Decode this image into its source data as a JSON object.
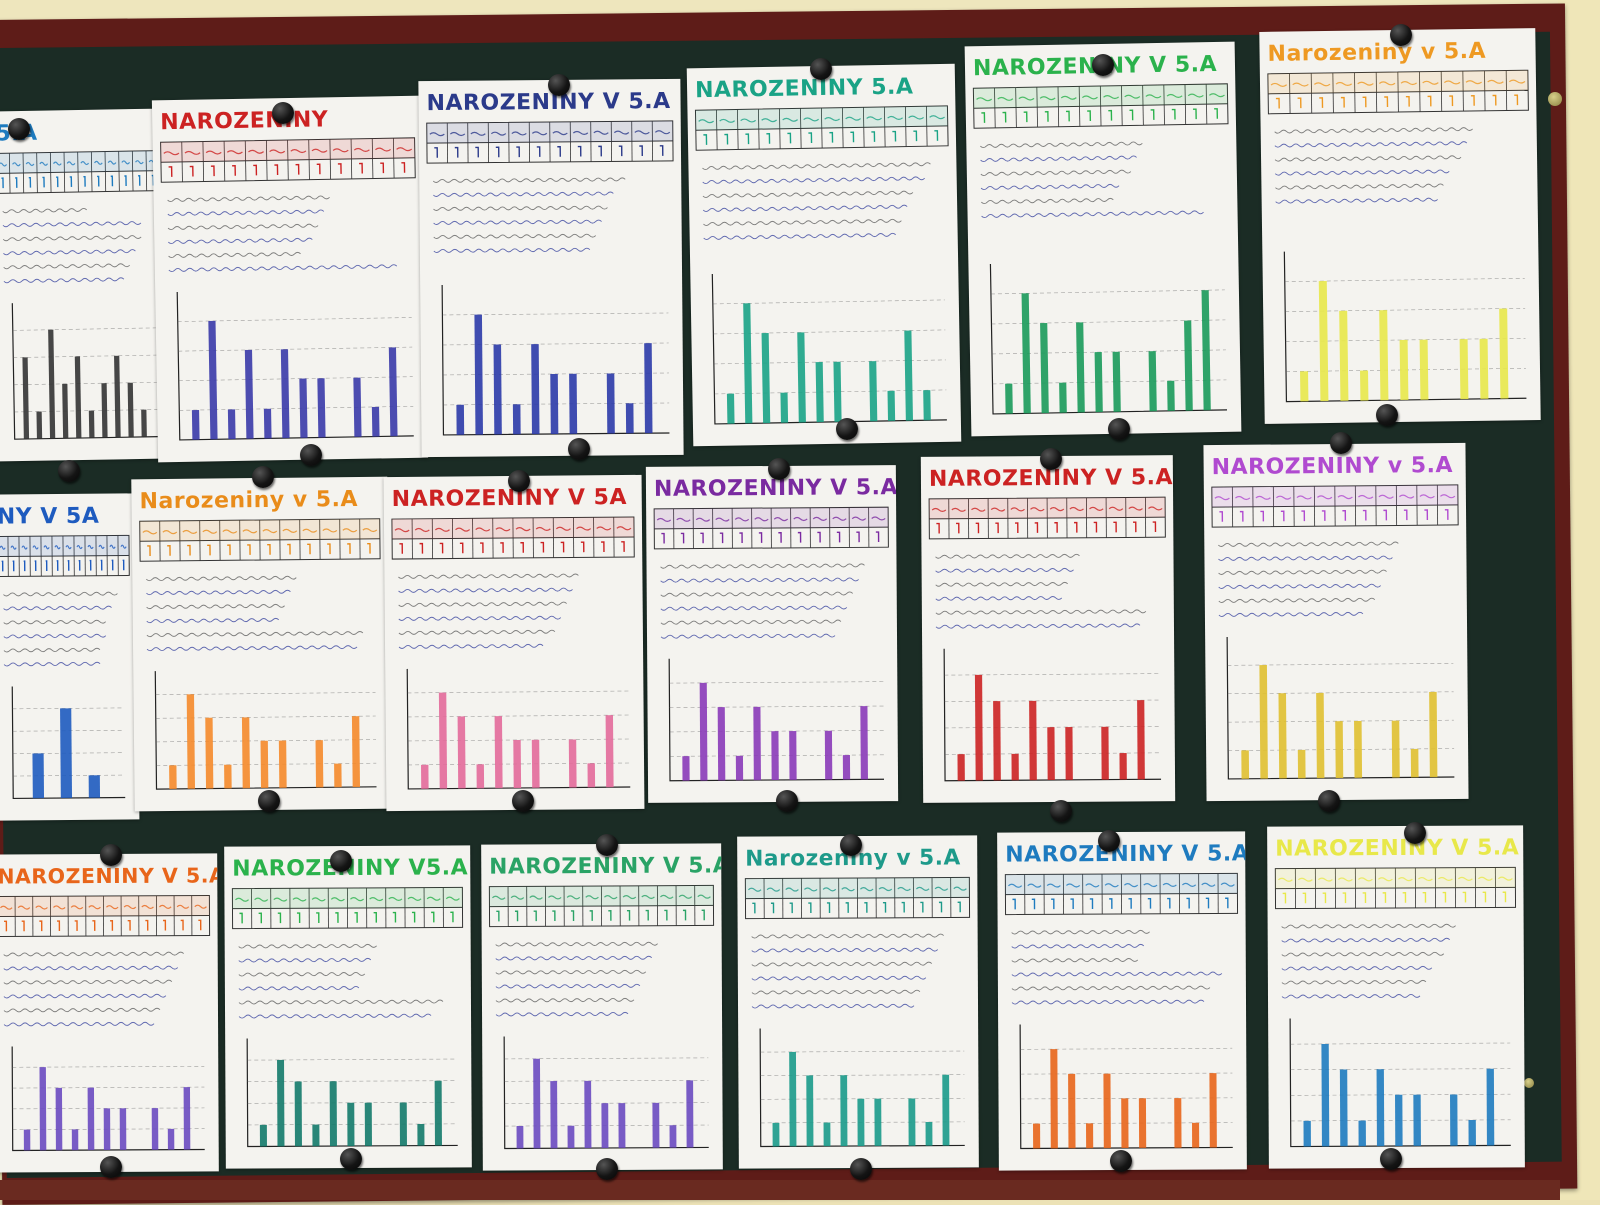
{
  "scene": {
    "subject": "Bulletin board with student birthday posters",
    "accent_colors": {
      "frame": "#5e1c18",
      "board": "#1b2c25",
      "paper": "#f4f3ef",
      "wall": "#ece2b6"
    }
  },
  "posters": [
    {
      "id": "r1c0",
      "title": "5.A",
      "color": "#1e7bbf",
      "bars": [
        3,
        1,
        4,
        2,
        3,
        1,
        2,
        3,
        2,
        1
      ],
      "bar_color": "#333333"
    },
    {
      "id": "r1c1",
      "title": "NAROZENINY",
      "color": "#cc2222",
      "bars": [
        1,
        4,
        1,
        3,
        1,
        3,
        2,
        2,
        0,
        2,
        1,
        3
      ],
      "bar_color": "#3a3aa8"
    },
    {
      "id": "r1c2",
      "title": "NAROZENINY V 5.A",
      "color": "#2b3a8a",
      "bars": [
        1,
        4,
        3,
        1,
        3,
        2,
        2,
        0,
        2,
        1,
        3
      ],
      "bar_color": "#2b3aa8"
    },
    {
      "id": "r1c3",
      "title": "NAROZENINY 5.A",
      "color": "#1aa386",
      "bars": [
        1,
        4,
        3,
        1,
        3,
        2,
        2,
        0,
        2,
        1,
        3,
        1
      ],
      "bar_color": "#1aa386"
    },
    {
      "id": "r1c4",
      "title": "NAROZENINY V 5.A",
      "color": "#2bb24c",
      "bars": [
        1,
        4,
        3,
        1,
        3,
        2,
        2,
        0,
        2,
        1,
        3,
        4
      ],
      "bar_color": "#1a9a5a"
    },
    {
      "id": "r1c5",
      "title": "Narozeniny v 5.A",
      "color": "#ee9922",
      "bars": [
        1,
        4,
        3,
        1,
        3,
        2,
        2,
        0,
        2,
        2,
        3
      ],
      "bar_color": "#e8e84a"
    },
    {
      "id": "r2c0",
      "title": "NY V 5A",
      "color": "#1e5bbf",
      "bars": [
        2,
        4,
        1
      ],
      "bar_color": "#1e5bbf"
    },
    {
      "id": "r2c1",
      "title": "Narozeniny v 5.A",
      "color": "#e98c1a",
      "bars": [
        1,
        4,
        3,
        1,
        3,
        2,
        2,
        0,
        2,
        1,
        3
      ],
      "bar_color": "#f5892a"
    },
    {
      "id": "r2c2",
      "title": "NAROZENINY V 5A",
      "color": "#cc2222",
      "bars": [
        1,
        4,
        3,
        1,
        3,
        2,
        2,
        0,
        2,
        1,
        3
      ],
      "bar_color": "#e36a9a"
    },
    {
      "id": "r2c3",
      "title": "NAROZENINY V 5.A",
      "color": "#7a2aa0",
      "bars": [
        1,
        4,
        3,
        1,
        3,
        2,
        2,
        0,
        2,
        1,
        3
      ],
      "bar_color": "#8a3ab8"
    },
    {
      "id": "r2c4",
      "title": "NAROZENINY V 5.A",
      "color": "#cc2222",
      "bars": [
        1,
        4,
        3,
        1,
        3,
        2,
        2,
        0,
        2,
        1,
        3
      ],
      "bar_color": "#cc2222"
    },
    {
      "id": "r2c5",
      "title": "NAROZENINY v 5.A",
      "color": "#b04ad0",
      "bars": [
        1,
        4,
        3,
        1,
        3,
        2,
        2,
        0,
        2,
        1,
        3
      ],
      "bar_color": "#e0c030"
    },
    {
      "id": "r3c0",
      "title": "NAROZENINY V 5.A",
      "color": "#e8651a",
      "bars": [
        1,
        4,
        3,
        1,
        3,
        2,
        2,
        0,
        2,
        1,
        3
      ],
      "bar_color": "#6a4ac0"
    },
    {
      "id": "r3c1",
      "title": "NAROZENINY V5.A",
      "color": "#2bb24c",
      "bars": [
        1,
        4,
        3,
        1,
        3,
        2,
        2,
        0,
        2,
        1,
        3
      ],
      "bar_color": "#137a6a"
    },
    {
      "id": "r3c2",
      "title": "NAROZENINY V 5.A",
      "color": "#2aa366",
      "bars": [
        1,
        4,
        3,
        1,
        3,
        2,
        2,
        0,
        2,
        1,
        3
      ],
      "bar_color": "#6a4ac0"
    },
    {
      "id": "r3c3",
      "title": "Narozeniny v 5.A",
      "color": "#1e9a8a",
      "bars": [
        1,
        4,
        3,
        1,
        3,
        2,
        2,
        0,
        2,
        1,
        3
      ],
      "bar_color": "#1a9a8a"
    },
    {
      "id": "r3c4",
      "title": "NAROZENINY V 5.A",
      "color": "#1e7bbf",
      "bars": [
        1,
        4,
        3,
        1,
        3,
        2,
        2,
        0,
        2,
        1,
        3
      ],
      "bar_color": "#e8651a"
    },
    {
      "id": "r3c5",
      "title": "NAROZENINY V 5.A",
      "color": "#e8e84a",
      "bars": [
        1,
        4,
        3,
        1,
        3,
        2,
        2,
        0,
        2,
        1,
        3
      ],
      "bar_color": "#1e7bbf"
    }
  ]
}
